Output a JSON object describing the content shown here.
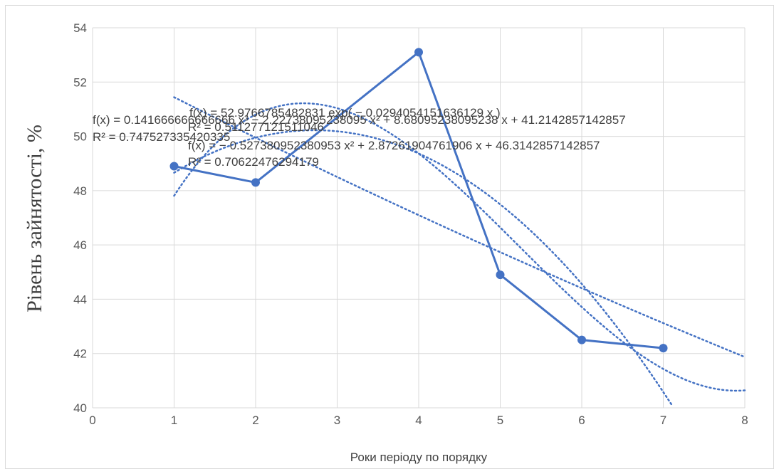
{
  "chart_data": {
    "type": "line",
    "title": "",
    "xlabel": "Роки періоду по порядку",
    "ylabel": "Рівень зайнятості, %",
    "xlim": [
      0,
      8
    ],
    "ylim": [
      40,
      54
    ],
    "x_ticks": [
      "0",
      "1",
      "2",
      "3",
      "4",
      "5",
      "6",
      "7",
      "8"
    ],
    "y_ticks": [
      "40",
      "42",
      "44",
      "46",
      "48",
      "50",
      "52",
      "54"
    ],
    "grid": true,
    "legend": "none",
    "colors": {
      "series": "#4472c4",
      "grid": "#d9d9d9",
      "axis_text": "#595959"
    },
    "series": [
      {
        "x": [
          1,
          2,
          4,
          5,
          6,
          7
        ],
        "y": [
          48.9,
          48.3,
          53.1,
          44.9,
          42.5,
          42.2
        ]
      }
    ],
    "trendlines": [
      {
        "kind": "exponential",
        "a": 52.9766785482831,
        "b": -0.0294054151636129,
        "x_range": [
          1,
          8
        ]
      },
      {
        "kind": "polynomial",
        "coefficients": [
          0.141666666666666,
          -2.22738095238095,
          8.68095238095238,
          41.2142857142857
        ],
        "x_range": [
          1,
          8
        ]
      },
      {
        "kind": "polynomial",
        "coefficients": [
          -0.527380952380953,
          2.87261904761906,
          46.3142857142857
        ],
        "x_range": [
          1,
          7.1
        ]
      }
    ],
    "annotations": [
      "f(x) = 52.9766785482831 exp( − 0.0294054151636129 x )",
      "R² = 0.511277121511046",
      "f(x) = 0.141666666666666 x³ − 2.22738095238095 x² + 8.68095238095238 x + 41.2142857142857",
      "R² = 0.747527335420335",
      "f(x) = − 0.527380952380953 x² + 2.87261904761906 x + 46.3142857142857",
      "R² = 0.70622476294179"
    ]
  }
}
